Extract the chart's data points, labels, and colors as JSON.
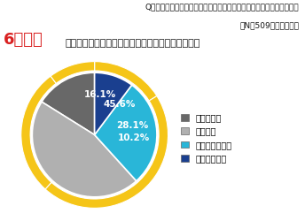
{
  "title_line1": "Q．電気代高騰により、エアコンの使用自体を控えようと思いますか？",
  "title_line2": "（N＝509　単一回答）",
  "subtitle_bold": "6割以上",
  "subtitle_rest": "の人がエアコンの使用自体を控えようと思っている",
  "slices": [
    16.1,
    45.6,
    28.1,
    10.2
  ],
  "labels": [
    "16.1%",
    "45.6%",
    "28.1%",
    "10.2%"
  ],
  "colors": [
    "#686868",
    "#b0b0b0",
    "#29b6d8",
    "#1a3f8f"
  ],
  "legend_labels": [
    "とても思う",
    "やや思う",
    "あまり思わない",
    "全く思わない"
  ],
  "legend_colors": [
    "#686868",
    "#b0b0b0",
    "#29b6d8",
    "#1a3f8f"
  ],
  "ring_color": "#f5c518",
  "start_angle": 90,
  "background": "#ffffff",
  "title_fontsize": 6.5,
  "subtitle_bold_color": "#d92020",
  "label_color": "#ffffff",
  "label_fontsize": 7.5,
  "legend_fontsize": 7
}
